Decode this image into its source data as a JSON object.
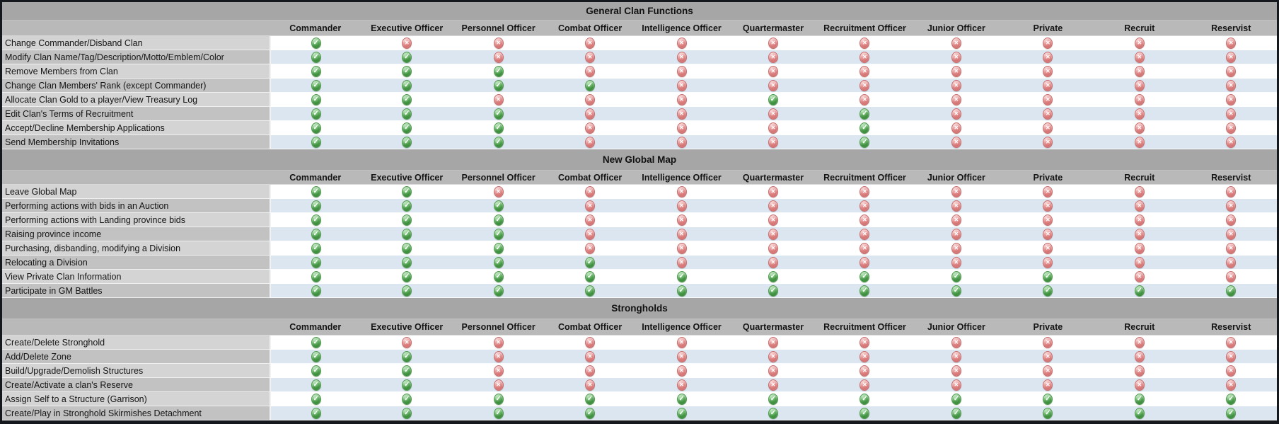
{
  "legend": {
    "allowed_icon": "green-check",
    "denied_icon": "red-cross",
    "allowed_color": "#51a051",
    "denied_color": "#df8585",
    "row_alt_color": "#dce6f1",
    "band_color": "#a6a6a6",
    "header_color": "#b9b9b9"
  },
  "chart_data": [
    {
      "type": "table",
      "title": "General Clan Functions",
      "columns": [
        "Commander",
        "Executive Officer",
        "Personnel Officer",
        "Combat Officer",
        "Intelligence Officer",
        "Quartermaster",
        "Recruitment Officer",
        "Junior Officer",
        "Private",
        "Recruit",
        "Reservist"
      ],
      "rows": [
        {
          "label": "Change Commander/Disband Clan",
          "values": [
            1,
            0,
            0,
            0,
            0,
            0,
            0,
            0,
            0,
            0,
            0
          ]
        },
        {
          "label": "Modify Clan Name/Tag/Description/Motto/Emblem/Color",
          "values": [
            1,
            1,
            0,
            0,
            0,
            0,
            0,
            0,
            0,
            0,
            0
          ]
        },
        {
          "label": "Remove Members from Clan",
          "values": [
            1,
            1,
            1,
            0,
            0,
            0,
            0,
            0,
            0,
            0,
            0
          ]
        },
        {
          "label": "Change Clan Members' Rank (except Commander)",
          "values": [
            1,
            1,
            1,
            1,
            0,
            0,
            0,
            0,
            0,
            0,
            0
          ]
        },
        {
          "label": "Allocate Clan Gold to a player/View Treasury Log",
          "values": [
            1,
            1,
            0,
            0,
            0,
            1,
            0,
            0,
            0,
            0,
            0
          ]
        },
        {
          "label": "Edit Clan's Terms of Recruitment",
          "values": [
            1,
            1,
            1,
            0,
            0,
            0,
            1,
            0,
            0,
            0,
            0
          ]
        },
        {
          "label": "Accept/Decline Membership Applications",
          "values": [
            1,
            1,
            1,
            0,
            0,
            0,
            1,
            0,
            0,
            0,
            0
          ]
        },
        {
          "label": "Send Membership Invitations",
          "values": [
            1,
            1,
            1,
            0,
            0,
            0,
            1,
            0,
            0,
            0,
            0
          ]
        }
      ]
    },
    {
      "type": "table",
      "title": "New Global Map",
      "columns": [
        "Commander",
        "Executive Officer",
        "Personnel Officer",
        "Combat Officer",
        "Intelligence Officer",
        "Quartermaster",
        "Recruitment Officer",
        "Junior Officer",
        "Private",
        "Recruit",
        "Reservist"
      ],
      "rows": [
        {
          "label": "Leave Global Map",
          "values": [
            1,
            1,
            0,
            0,
            0,
            0,
            0,
            0,
            0,
            0,
            0
          ]
        },
        {
          "label": "Performing actions with bids in an Auction",
          "values": [
            1,
            1,
            1,
            0,
            0,
            0,
            0,
            0,
            0,
            0,
            0
          ]
        },
        {
          "label": "Performing actions with Landing province bids",
          "values": [
            1,
            1,
            1,
            0,
            0,
            0,
            0,
            0,
            0,
            0,
            0
          ]
        },
        {
          "label": "Raising province income",
          "values": [
            1,
            1,
            1,
            0,
            0,
            0,
            0,
            0,
            0,
            0,
            0
          ]
        },
        {
          "label": "Purchasing, disbanding, modifying a Division",
          "values": [
            1,
            1,
            1,
            0,
            0,
            0,
            0,
            0,
            0,
            0,
            0
          ]
        },
        {
          "label": "Relocating a Division",
          "values": [
            1,
            1,
            1,
            1,
            0,
            0,
            0,
            0,
            0,
            0,
            0
          ]
        },
        {
          "label": "View Private Clan Information",
          "values": [
            1,
            1,
            1,
            1,
            1,
            1,
            1,
            1,
            1,
            0,
            0
          ]
        },
        {
          "label": "Participate in GM Battles",
          "values": [
            1,
            1,
            1,
            1,
            1,
            1,
            1,
            1,
            1,
            1,
            1
          ]
        }
      ]
    },
    {
      "type": "table",
      "title": "Strongholds",
      "columns": [
        "Commander",
        "Executive Officer",
        "Personnel Officer",
        "Combat Officer",
        "Intelligence Officer",
        "Quartermaster",
        "Recruitment Officer",
        "Junior Officer",
        "Private",
        "Recruit",
        "Reservist"
      ],
      "rows": [
        {
          "label": "Create/Delete Stronghold",
          "values": [
            1,
            0,
            0,
            0,
            0,
            0,
            0,
            0,
            0,
            0,
            0
          ]
        },
        {
          "label": "Add/Delete Zone",
          "values": [
            1,
            1,
            0,
            0,
            0,
            0,
            0,
            0,
            0,
            0,
            0
          ]
        },
        {
          "label": "Build/Upgrade/Demolish Structures",
          "values": [
            1,
            1,
            0,
            0,
            0,
            0,
            0,
            0,
            0,
            0,
            0
          ]
        },
        {
          "label": "Create/Activate a clan's Reserve",
          "values": [
            1,
            1,
            0,
            0,
            0,
            0,
            0,
            0,
            0,
            0,
            0
          ]
        },
        {
          "label": "Assign Self to a Structure (Garrison)",
          "values": [
            1,
            1,
            1,
            1,
            1,
            1,
            1,
            1,
            1,
            1,
            1
          ]
        },
        {
          "label": "Create/Play in Stronghold Skirmishes Detachment",
          "values": [
            1,
            1,
            1,
            1,
            1,
            1,
            1,
            1,
            1,
            1,
            1
          ]
        }
      ]
    }
  ]
}
